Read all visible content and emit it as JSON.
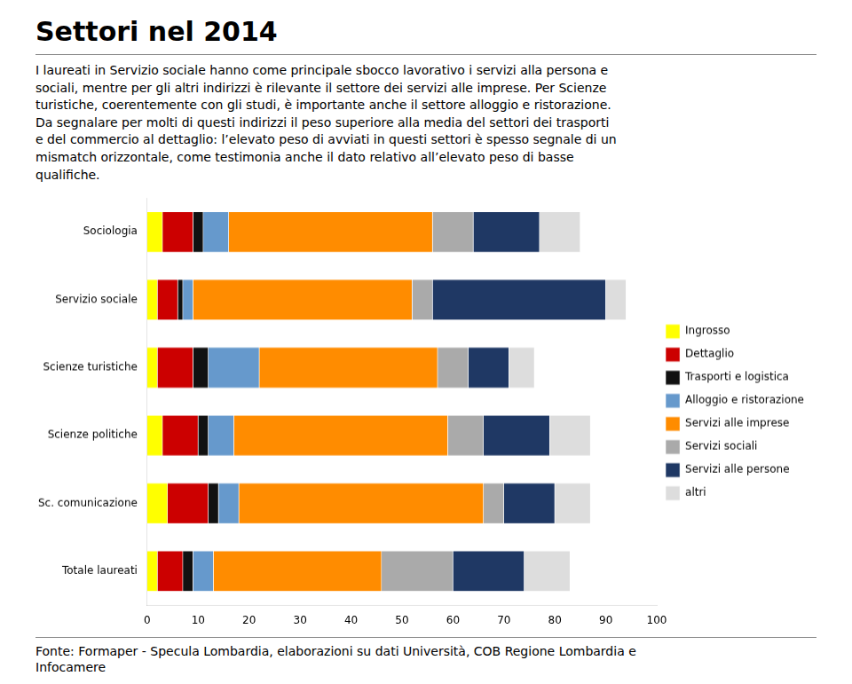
{
  "chart_data": {
    "type": "bar",
    "orientation": "horizontal",
    "stacked": true,
    "title": "Settori nel 2014",
    "subtitle": "I laureati in Servizio sociale hanno come principale sbocco lavorativo i servizi alla persona e\nsociali, mentre per gli altri indirizzi è rilevante il settore dei servizi alle imprese. Per Scienze\nturistiche, coerentemente con gli studi, è importante anche il settore alloggio e ristorazione.\nDa segnalare per molti di questi indirizzi il peso superiore alla media del settori dei trasporti\ne del commercio al dettaglio: l’elevato peso di avviati in questi settori è spesso segnale di un\nmismatch orizzontale, come testimonia anche il dato relativo all’elevato peso di  basse\nqualifiche.",
    "annotations": [
      "Fonte: Formaper - Specula Lombardia, elaborazioni su dati Università, COB Regione Lombardia e\nInfocamere"
    ],
    "categories": [
      "Sociologia",
      "Servizio sociale",
      "Scienze turistiche",
      "Scienze politiche",
      "Sc. comunicazione",
      "Totale laureati"
    ],
    "series": [
      {
        "name": "Ingrosso",
        "color": "#FFFF00",
        "values": [
          3,
          2,
          2,
          3,
          4,
          2
        ]
      },
      {
        "name": "Dettaglio",
        "color": "#CC0000",
        "values": [
          6,
          4,
          7,
          7,
          8,
          5
        ]
      },
      {
        "name": "Trasporti e logistica",
        "color": "#111111",
        "values": [
          2,
          1,
          3,
          2,
          2,
          2
        ]
      },
      {
        "name": "Alloggio e ristorazione",
        "color": "#6699CC",
        "values": [
          5,
          2,
          10,
          5,
          4,
          4
        ]
      },
      {
        "name": "Servizi alle imprese",
        "color": "#FF8C00",
        "values": [
          40,
          43,
          35,
          42,
          48,
          33
        ]
      },
      {
        "name": "Servizi sociali",
        "color": "#AAAAAA",
        "values": [
          8,
          4,
          6,
          7,
          4,
          14
        ]
      },
      {
        "name": "Servizi alle persone",
        "color": "#1F3864",
        "values": [
          13,
          34,
          8,
          13,
          10,
          14
        ]
      },
      {
        "name": "altri",
        "color": "#DDDDDD",
        "values": [
          8,
          4,
          5,
          8,
          7,
          9
        ]
      }
    ],
    "xlim": [
      0,
      100
    ],
    "xticks": [
      0,
      10,
      20,
      30,
      40,
      50,
      60,
      70,
      80,
      90,
      100
    ],
    "grid": false,
    "legend": "right"
  }
}
